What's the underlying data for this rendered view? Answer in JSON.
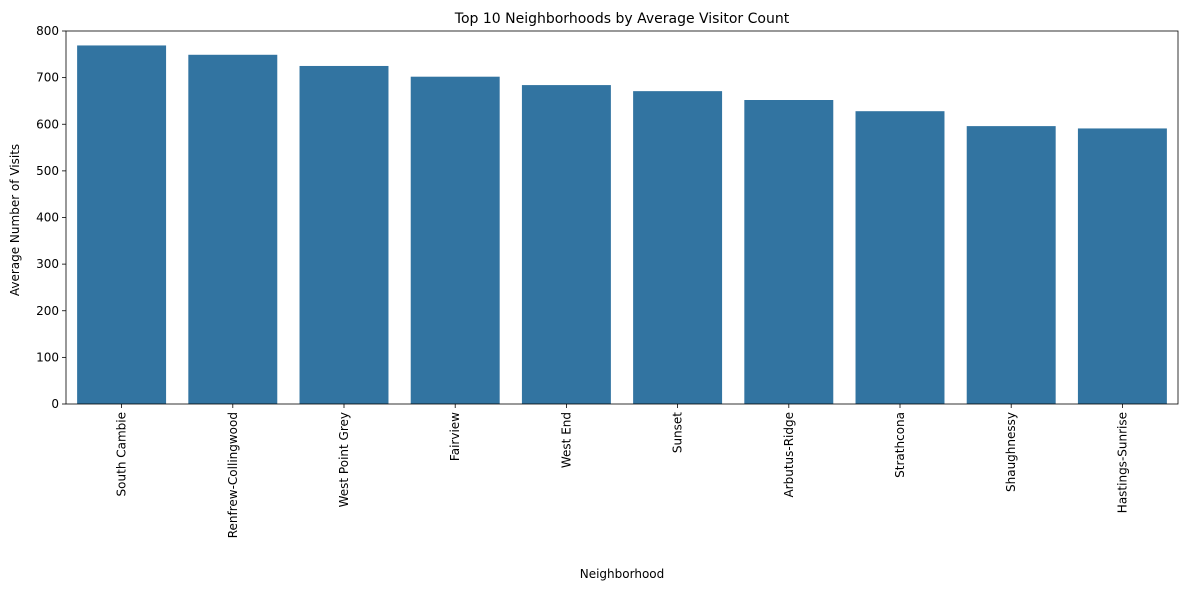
{
  "chart_data": {
    "type": "bar",
    "title": "Top 10 Neighborhoods by Average Visitor Count",
    "xlabel": "Neighborhood",
    "ylabel": "Average Number of Visits",
    "categories": [
      "South Cambie",
      "Renfrew-Collingwood",
      "West Point Grey",
      "Fairview",
      "West End",
      "Sunset",
      "Arbutus-Ridge",
      "Strathcona",
      "Shaughnessy",
      "Hastings-Sunrise"
    ],
    "values": [
      769,
      749,
      725,
      702,
      684,
      671,
      652,
      628,
      596,
      591
    ],
    "ylim": [
      0,
      800
    ],
    "yticks": [
      0,
      100,
      200,
      300,
      400,
      500,
      600,
      700,
      800
    ],
    "grid": false,
    "legend": "none",
    "bar_color": "#3274a1"
  }
}
